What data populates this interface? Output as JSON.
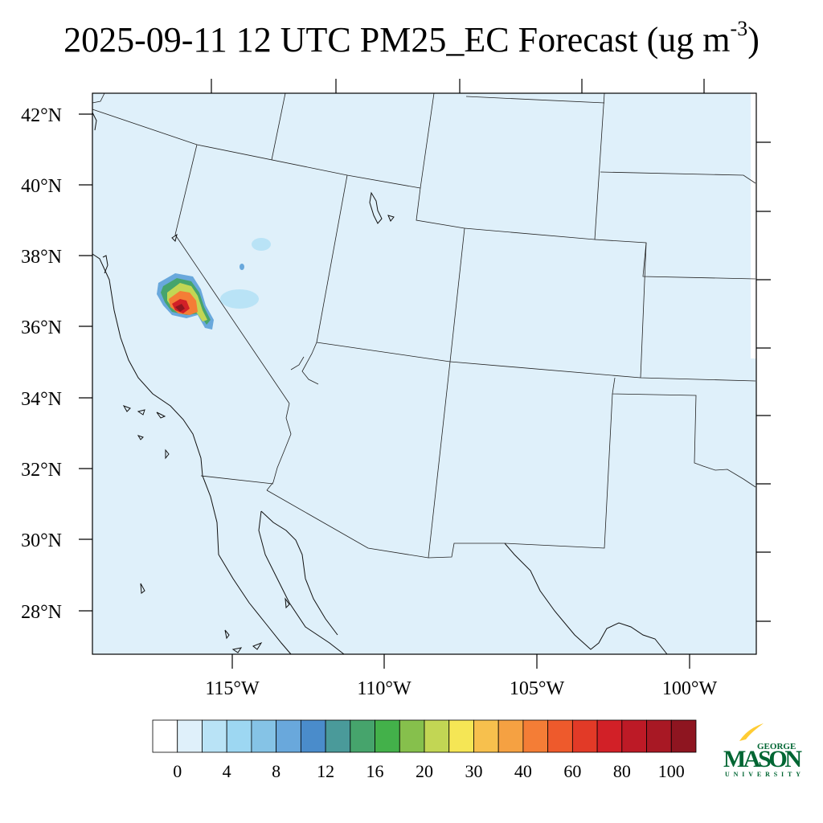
{
  "title": {
    "main": "2025-09-11 12 UTC PM25_EC Forecast (ug m",
    "exponent": "-3",
    "closing": ")"
  },
  "map": {
    "background_color": "#dff0fa",
    "lat_labels": [
      "42°N",
      "40°N",
      "38°N",
      "36°N",
      "34°N",
      "32°N",
      "30°N",
      "28°N"
    ],
    "lon_labels": [
      "115°W",
      "110°W",
      "105°W",
      "100°W"
    ]
  },
  "colorbar": {
    "colors": [
      "#ffffff",
      "#dff0fa",
      "#b9e3f6",
      "#9dd7f2",
      "#85c3e6",
      "#69a8dc",
      "#4a8ccb",
      "#4a9a9a",
      "#46a46c",
      "#43b14a",
      "#86c04c",
      "#c2d654",
      "#f5e655",
      "#f7c04d",
      "#f5a142",
      "#f47d36",
      "#ee5a2c",
      "#e23a27",
      "#d22027",
      "#bd1a26",
      "#a81824",
      "#8e1520"
    ],
    "tick_labels": [
      "0",
      "4",
      "8",
      "12",
      "16",
      "20",
      "30",
      "40",
      "60",
      "80",
      "100"
    ]
  },
  "logo": {
    "line1": "GEORGE",
    "line2": "MASON",
    "line3": "UNIVERSITY",
    "color_green": "#006633",
    "color_gold": "#ffcc33"
  }
}
